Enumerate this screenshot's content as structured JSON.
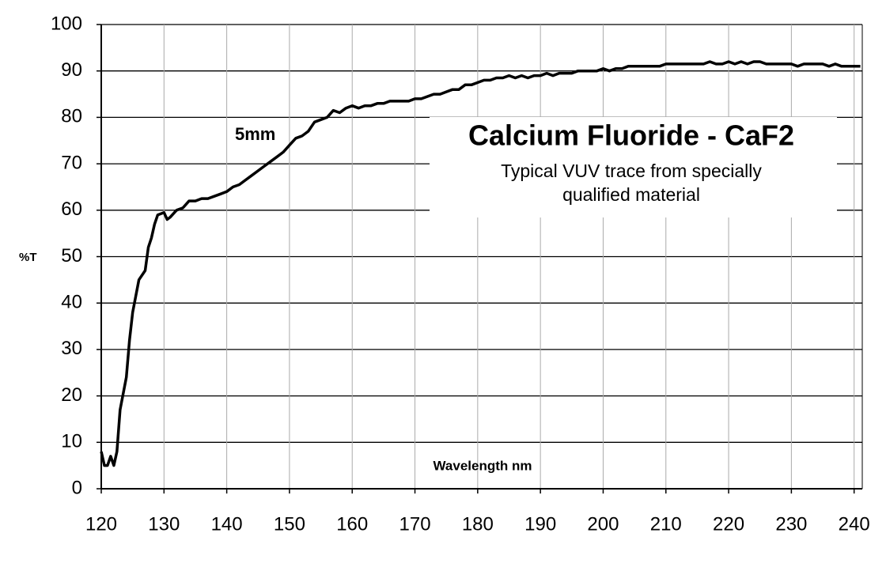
{
  "chart_data": {
    "type": "line",
    "title": "Calcium Fluoride - CaF2",
    "subtitle": "Typical VUV trace from specially qualified material",
    "annotation": "5mm",
    "x_label": "Wavelength nm",
    "y_label": "%T",
    "grid": true,
    "xlim": [
      120,
      241.3
    ],
    "ylim": [
      0,
      100
    ],
    "xticks": [
      120,
      130,
      140,
      150,
      160,
      170,
      180,
      190,
      200,
      210,
      220,
      230,
      240
    ],
    "yticks": [
      0,
      10,
      20,
      30,
      40,
      50,
      60,
      70,
      80,
      90,
      100
    ],
    "x": [
      120,
      120.5,
      121,
      121.5,
      122,
      122.5,
      123,
      124,
      124.5,
      125,
      126,
      127,
      127.5,
      128,
      128.5,
      129,
      130,
      130.5,
      131,
      132,
      133,
      134,
      135,
      136,
      137,
      138,
      139,
      140,
      141,
      142,
      143,
      144,
      145,
      146,
      147,
      148,
      149,
      150,
      151,
      152,
      153,
      154,
      155,
      156,
      157,
      158,
      159,
      160,
      161,
      162,
      163,
      164,
      165,
      166,
      167,
      168,
      169,
      170,
      171,
      172,
      173,
      174,
      175,
      176,
      177,
      178,
      179,
      180,
      181,
      182,
      183,
      184,
      185,
      186,
      187,
      188,
      189,
      190,
      191,
      192,
      193,
      194,
      195,
      196,
      197,
      198,
      199,
      200,
      201,
      202,
      203,
      204,
      205,
      206,
      207,
      208,
      209,
      210,
      211,
      212,
      213,
      214,
      215,
      216,
      217,
      218,
      219,
      220,
      221,
      222,
      223,
      224,
      225,
      226,
      227,
      228,
      229,
      230,
      231,
      232,
      233,
      234,
      235,
      236,
      237,
      238,
      239,
      240,
      241
    ],
    "series": [
      {
        "name": "5mm",
        "color": "#000000",
        "values": [
          8,
          5,
          5,
          7,
          5,
          8,
          17,
          24,
          32,
          38,
          45,
          47,
          52,
          54,
          57,
          59,
          59.5,
          58,
          58.5,
          60,
          60.5,
          62,
          62,
          62.5,
          62.5,
          63,
          63.5,
          64,
          65,
          65.5,
          66.5,
          67.5,
          68.5,
          69.5,
          70.5,
          71.5,
          72.5,
          74,
          75.5,
          76,
          77,
          79,
          79.5,
          80,
          81.5,
          81,
          82,
          82.5,
          82,
          82.5,
          82.5,
          83,
          83,
          83.5,
          83.5,
          83.5,
          83.5,
          84,
          84,
          84.5,
          85,
          85,
          85.5,
          86,
          86,
          87,
          87,
          87.5,
          88,
          88,
          88.5,
          88.5,
          89,
          88.5,
          89,
          88.5,
          89,
          89,
          89.5,
          89,
          89.5,
          89.5,
          89.5,
          90,
          90,
          90,
          90,
          90.5,
          90,
          90.5,
          90.5,
          91,
          91,
          91,
          91,
          91,
          91,
          91.5,
          91.5,
          91.5,
          91.5,
          91.5,
          91.5,
          91.5,
          92,
          91.5,
          91.5,
          92,
          91.5,
          92,
          91.5,
          92,
          92,
          91.5,
          91.5,
          91.5,
          91.5,
          91.5,
          91,
          91.5,
          91.5,
          91.5,
          91.5,
          91,
          91.5,
          91,
          91,
          91,
          91
        ]
      }
    ]
  }
}
